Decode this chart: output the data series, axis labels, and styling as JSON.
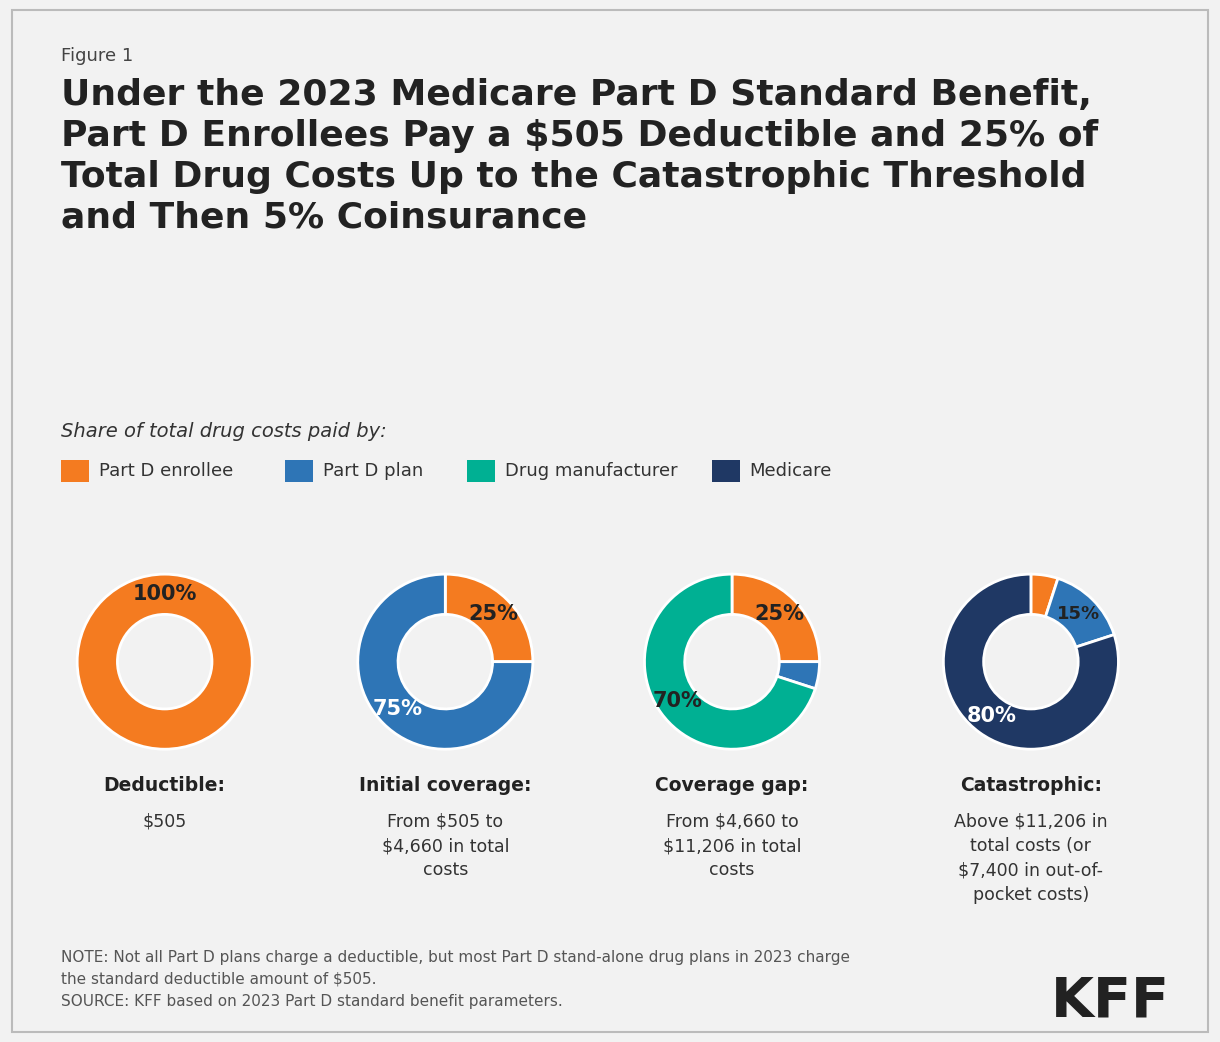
{
  "figure_label": "Figure 1",
  "title": "Under the 2023 Medicare Part D Standard Benefit,\nPart D Enrollees Pay a $505 Deductible and 25% of\nTotal Drug Costs Up to the Catastrophic Threshold\nand Then 5% Coinsurance",
  "subtitle": "Share of total drug costs paid by:",
  "legend_items": [
    "Part D enrollee",
    "Part D plan",
    "Drug manufacturer",
    "Medicare"
  ],
  "legend_colors": [
    "#F47B20",
    "#2E75B6",
    "#00B093",
    "#1F3864"
  ],
  "bg_color": "#F2F2F2",
  "border_color": "#BBBBBB",
  "charts": [
    {
      "title_bold": "Deductible:",
      "title_normal": "$505",
      "slices": [
        100
      ],
      "colors": [
        "#F47B20"
      ],
      "labels": [
        "100%"
      ],
      "label_colors": [
        "#222222"
      ],
      "startangle": 270
    },
    {
      "title_bold": "Initial coverage:",
      "title_normal": "From $505 to\n$4,660 in total\ncosts",
      "slices": [
        25,
        75
      ],
      "colors": [
        "#F47B20",
        "#2E75B6"
      ],
      "labels": [
        "25%",
        "75%"
      ],
      "label_colors": [
        "#222222",
        "white"
      ],
      "startangle": 90
    },
    {
      "title_bold": "Coverage gap:",
      "title_normal": "From $4,660 to\n$11,206 in total\ncosts",
      "slices": [
        25,
        5,
        70
      ],
      "colors": [
        "#F47B20",
        "#2E75B6",
        "#00B093"
      ],
      "labels": [
        "25%",
        "",
        "70%"
      ],
      "label_colors": [
        "#222222",
        "white",
        "#222222"
      ],
      "startangle": 90
    },
    {
      "title_bold": "Catastrophic:",
      "title_normal": "Above $11,206 in\ntotal costs (or\n$7,400 in out-of-\npocket costs)",
      "slices": [
        5,
        15,
        80
      ],
      "colors": [
        "#F47B20",
        "#2E75B6",
        "#1F3864"
      ],
      "labels": [
        "",
        "15%",
        "80%"
      ],
      "label_colors": [
        "white",
        "#222222",
        "white"
      ],
      "startangle": 90
    }
  ],
  "note_text": "NOTE: Not all Part D plans charge a deductible, but most Part D stand-alone drug plans in 2023 charge\nthe standard deductible amount of $505.\nSOURCE: KFF based on 2023 Part D standard benefit parameters.",
  "kff_text": "KFF"
}
